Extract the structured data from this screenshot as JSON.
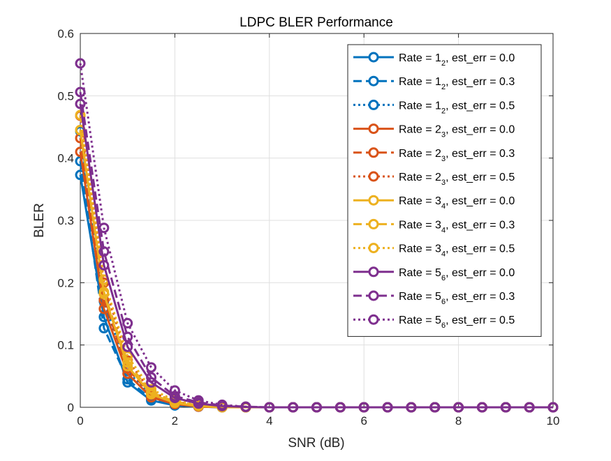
{
  "chart_data": {
    "type": "line",
    "title": "LDPC BLER Performance",
    "xlabel": "SNR (dB)",
    "ylabel": "BLER",
    "xlim": [
      0,
      10
    ],
    "ylim": [
      0,
      0.6
    ],
    "xticks": [
      0,
      2,
      4,
      6,
      8,
      10
    ],
    "yticks": [
      0,
      0.1,
      0.2,
      0.3,
      0.4,
      0.5,
      0.6
    ],
    "xtick_labels": [
      "0",
      "2",
      "4",
      "6",
      "8",
      "10"
    ],
    "ytick_labels": [
      "0",
      "0.1",
      "0.2",
      "0.3",
      "0.4",
      "0.5",
      "0.6"
    ],
    "grid": true,
    "legend_position": "top-right",
    "x": [
      0,
      0.5,
      1,
      1.5,
      2,
      2.5,
      3,
      3.5,
      4,
      4.5,
      5,
      5.5,
      6,
      6.5,
      7,
      7.5,
      8,
      8.5,
      9,
      9.5,
      10
    ],
    "series": [
      {
        "name": "Rate = 1",
        "name_sub": "2",
        "name_suffix": ", est_err = 0.0",
        "color": "#0072BD",
        "dash": "solid",
        "values": [
          0.373,
          0.145,
          0.04,
          0.011,
          0.003,
          0.001,
          0,
          0,
          0,
          0,
          0,
          0,
          0,
          0,
          0,
          0,
          0,
          0,
          0,
          0,
          0
        ]
      },
      {
        "name": "Rate = 1",
        "name_sub": "2",
        "name_suffix": ", est_err = 0.3",
        "color": "#0072BD",
        "dash": "dashed",
        "values": [
          0.395,
          0.127,
          0.045,
          0.013,
          0.004,
          0.001,
          0,
          0,
          0,
          0,
          0,
          0,
          0,
          0,
          0,
          0,
          0,
          0,
          0,
          0,
          0
        ]
      },
      {
        "name": "Rate = 1",
        "name_sub": "2",
        "name_suffix": ", est_err = 0.5",
        "color": "#0072BD",
        "dash": "dotted",
        "values": [
          0.443,
          0.17,
          0.058,
          0.018,
          0.006,
          0.002,
          0.0005,
          0,
          0,
          0,
          0,
          0,
          0,
          0,
          0,
          0,
          0,
          0,
          0,
          0,
          0
        ]
      },
      {
        "name": "Rate = 2",
        "name_sub": "3",
        "name_suffix": ", est_err = 0.0",
        "color": "#D95319",
        "dash": "solid",
        "values": [
          0.41,
          0.158,
          0.054,
          0.016,
          0.005,
          0.001,
          0,
          0,
          0,
          0,
          0,
          0,
          0,
          0,
          0,
          0,
          0,
          0,
          0,
          0,
          0
        ]
      },
      {
        "name": "Rate = 2",
        "name_sub": "3",
        "name_suffix": ", est_err = 0.3",
        "color": "#D95319",
        "dash": "dashed",
        "values": [
          0.432,
          0.172,
          0.062,
          0.02,
          0.007,
          0.002,
          0.0005,
          0,
          0,
          0,
          0,
          0,
          0,
          0,
          0,
          0,
          0,
          0,
          0,
          0,
          0
        ]
      },
      {
        "name": "Rate = 2",
        "name_sub": "3",
        "name_suffix": ", est_err = 0.5",
        "color": "#D95319",
        "dash": "dotted",
        "values": [
          0.468,
          0.2,
          0.075,
          0.025,
          0.009,
          0.003,
          0.001,
          0,
          0,
          0,
          0,
          0,
          0,
          0,
          0,
          0,
          0,
          0,
          0,
          0,
          0
        ]
      },
      {
        "name": "Rate = 3",
        "name_sub": "4",
        "name_suffix": ", est_err = 0.0",
        "color": "#EDB120",
        "dash": "solid",
        "values": [
          0.445,
          0.182,
          0.066,
          0.021,
          0.007,
          0.002,
          0,
          0,
          0,
          0,
          0,
          0,
          0,
          0,
          0,
          0,
          0,
          0,
          0,
          0,
          0
        ]
      },
      {
        "name": "Rate = 3",
        "name_sub": "4",
        "name_suffix": ", est_err = 0.3",
        "color": "#EDB120",
        "dash": "dashed",
        "values": [
          0.445,
          0.185,
          0.072,
          0.024,
          0.009,
          0.003,
          0.001,
          0,
          0,
          0,
          0,
          0,
          0,
          0,
          0,
          0,
          0,
          0,
          0,
          0,
          0
        ]
      },
      {
        "name": "Rate = 3",
        "name_sub": "4",
        "name_suffix": ", est_err = 0.5",
        "color": "#EDB120",
        "dash": "dotted",
        "values": [
          0.469,
          0.205,
          0.082,
          0.029,
          0.011,
          0.004,
          0.001,
          0,
          0,
          0,
          0,
          0,
          0,
          0,
          0,
          0,
          0,
          0,
          0,
          0,
          0
        ]
      },
      {
        "name": "Rate = 5",
        "name_sub": "6",
        "name_suffix": ", est_err = 0.0",
        "color": "#7E2F8E",
        "dash": "solid",
        "values": [
          0.487,
          0.228,
          0.097,
          0.04,
          0.015,
          0.006,
          0.002,
          0.0005,
          0,
          0,
          0,
          0,
          0,
          0,
          0,
          0,
          0,
          0,
          0,
          0,
          0
        ]
      },
      {
        "name": "Rate = 5",
        "name_sub": "6",
        "name_suffix": ", est_err = 0.3",
        "color": "#7E2F8E",
        "dash": "dashed",
        "values": [
          0.506,
          0.25,
          0.113,
          0.048,
          0.018,
          0.008,
          0.003,
          0.001,
          0,
          0,
          0,
          0,
          0,
          0,
          0,
          0,
          0,
          0,
          0,
          0,
          0
        ]
      },
      {
        "name": "Rate = 5",
        "name_sub": "6",
        "name_suffix": ", est_err = 0.5",
        "color": "#7E2F8E",
        "dash": "dotted",
        "values": [
          0.552,
          0.288,
          0.135,
          0.064,
          0.027,
          0.011,
          0.004,
          0.001,
          0,
          0,
          0,
          0,
          0,
          0,
          0,
          0,
          0,
          0,
          0,
          0,
          0
        ]
      }
    ]
  }
}
